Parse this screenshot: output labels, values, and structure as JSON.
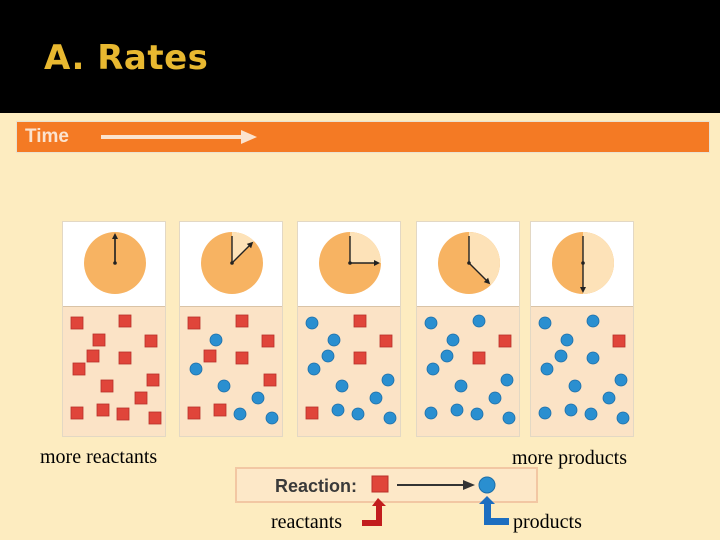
{
  "slide": {
    "title": "A. Rates"
  },
  "timeline": {
    "label": "Time"
  },
  "captions": {
    "left": "more reactants",
    "right": "more products",
    "reactants": "reactants",
    "products": "products"
  },
  "reaction": {
    "label": "Reaction:"
  },
  "colors": {
    "title": "#e8b830",
    "time_bar": "#f47a24",
    "reactant": "#e0453a",
    "product": "#2a8fd0",
    "clock": "#f7b362",
    "clock_elapsed": "#fde2b8",
    "panel": "#fbe3c6",
    "reactant_pointer": "#c21d1d",
    "product_pointer": "#1c6ec0"
  },
  "panels": [
    {
      "elapsed_fraction": 0.0,
      "reactants": 14,
      "products": 0
    },
    {
      "elapsed_fraction": 0.125,
      "reactants": 8,
      "products": 6
    },
    {
      "elapsed_fraction": 0.25,
      "reactants": 4,
      "products": 10
    },
    {
      "elapsed_fraction": 0.375,
      "reactants": 2,
      "products": 12
    },
    {
      "elapsed_fraction": 0.5,
      "reactants": 1,
      "products": 13
    }
  ]
}
